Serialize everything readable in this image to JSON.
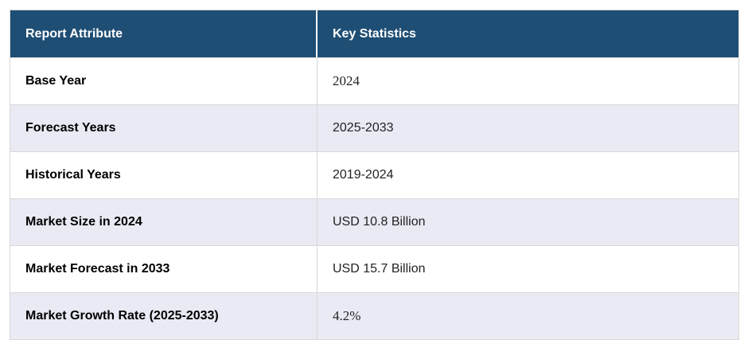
{
  "chart_data": {
    "type": "table",
    "columns": [
      "Report Attribute",
      "Key Statistics"
    ],
    "rows": [
      [
        "Base Year",
        "2024"
      ],
      [
        "Forecast Years",
        "2025-2033"
      ],
      [
        "Historical Years",
        "2019-2024"
      ],
      [
        "Market Size in 2024",
        "USD 10.8 Billion"
      ],
      [
        "Market Forecast in 2033",
        "USD 15.7 Billion"
      ],
      [
        "Market Growth Rate (2025-2033)",
        "4.2%"
      ]
    ]
  },
  "colors": {
    "header_bg": "#1F4E74",
    "header_text": "#FFFFFF",
    "row_bg": "#FFFFFF",
    "alt_row_bg": "#E9EAF4",
    "border": "#D9D9D9",
    "attribute_text": "#000000",
    "value_text": "#222222"
  }
}
